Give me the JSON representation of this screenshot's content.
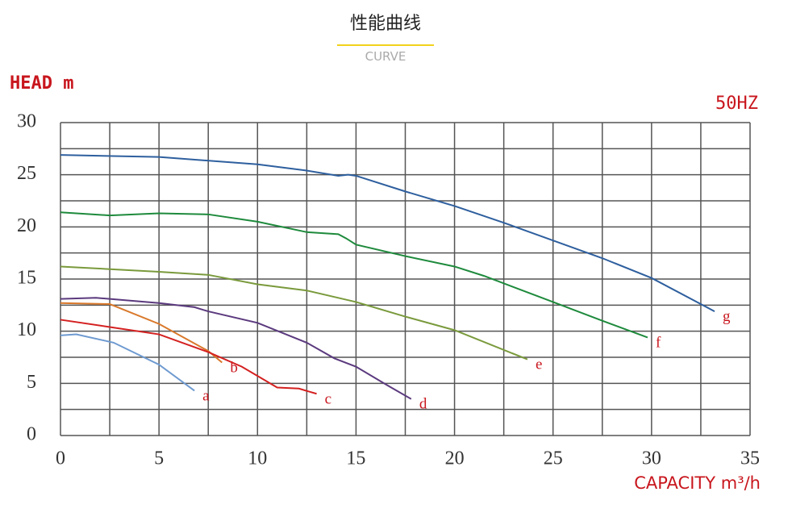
{
  "chart_data": {
    "type": "line",
    "title": "性能曲线",
    "subtitle": "CURVE",
    "y_label": "HEAD m",
    "x_label": "CAPACITY m³/h",
    "annotation": "50HZ",
    "xlim": [
      0,
      35
    ],
    "ylim": [
      0,
      30
    ],
    "xticks": [
      0,
      5,
      10,
      15,
      20,
      25,
      30,
      35
    ],
    "yticks": [
      0,
      5,
      10,
      15,
      20,
      25,
      30
    ],
    "xgrid": [
      0,
      2.5,
      5,
      7.5,
      10,
      12.5,
      15,
      17.5,
      20,
      22.5,
      25,
      27.5,
      30,
      32.5,
      35
    ],
    "ygrid": [
      0,
      2.5,
      5,
      7.5,
      10,
      12.5,
      15,
      17.5,
      20,
      22.5,
      25,
      27.5,
      30
    ],
    "grid": true,
    "series": [
      {
        "name": "a",
        "color": "#6e9ad0",
        "x": [
          0,
          0.8,
          2.7,
          5,
          6.8
        ],
        "values": [
          9.6,
          9.7,
          8.9,
          6.8,
          4.3
        ]
      },
      {
        "name": "b",
        "color": "#d9782a",
        "x": [
          0,
          2.5,
          5,
          7.5,
          8.2
        ],
        "values": [
          12.7,
          12.6,
          10.7,
          8.1,
          7.0
        ]
      },
      {
        "name": "c",
        "color": "#d42020",
        "x": [
          0,
          2.5,
          5,
          7.5,
          9.2,
          11,
          12.1,
          13
        ],
        "values": [
          11.1,
          10.4,
          9.7,
          8.0,
          6.6,
          4.6,
          4.5,
          4.0
        ]
      },
      {
        "name": "d",
        "color": "#5b3a7e",
        "x": [
          0,
          1.8,
          2.5,
          5,
          6.8,
          7.5,
          10,
          12.5,
          13.9,
          15,
          16.6,
          17.8
        ],
        "values": [
          13.1,
          13.2,
          13.1,
          12.7,
          12.3,
          11.9,
          10.8,
          8.9,
          7.4,
          6.6,
          4.8,
          3.5
        ]
      },
      {
        "name": "e",
        "color": "#7a9a3c",
        "x": [
          0,
          5,
          7.5,
          10,
          12.5,
          15,
          17.5,
          20,
          23.7
        ],
        "values": [
          16.2,
          15.7,
          15.4,
          14.5,
          13.9,
          12.8,
          11.4,
          10.1,
          7.3
        ]
      },
      {
        "name": "f",
        "color": "#1e8a3c",
        "x": [
          0,
          2.5,
          5,
          7.5,
          10,
          12.5,
          14.1,
          14.5,
          15,
          17.5,
          20,
          21.5,
          25,
          27.5,
          29.8
        ],
        "values": [
          21.4,
          21.1,
          21.3,
          21.2,
          20.5,
          19.5,
          19.3,
          18.9,
          18.3,
          17.2,
          16.2,
          15.3,
          12.8,
          11.0,
          9.4
        ]
      },
      {
        "name": "g",
        "color": "#2e5f9e",
        "x": [
          0,
          5,
          10,
          12.5,
          14.1,
          14.6,
          15,
          17.5,
          20,
          22.5,
          25,
          27.5,
          30,
          33.2
        ],
        "values": [
          26.9,
          26.7,
          26.0,
          25.4,
          24.9,
          25.0,
          24.9,
          23.4,
          22.0,
          20.4,
          18.7,
          17.0,
          15.1,
          11.9
        ]
      }
    ]
  }
}
